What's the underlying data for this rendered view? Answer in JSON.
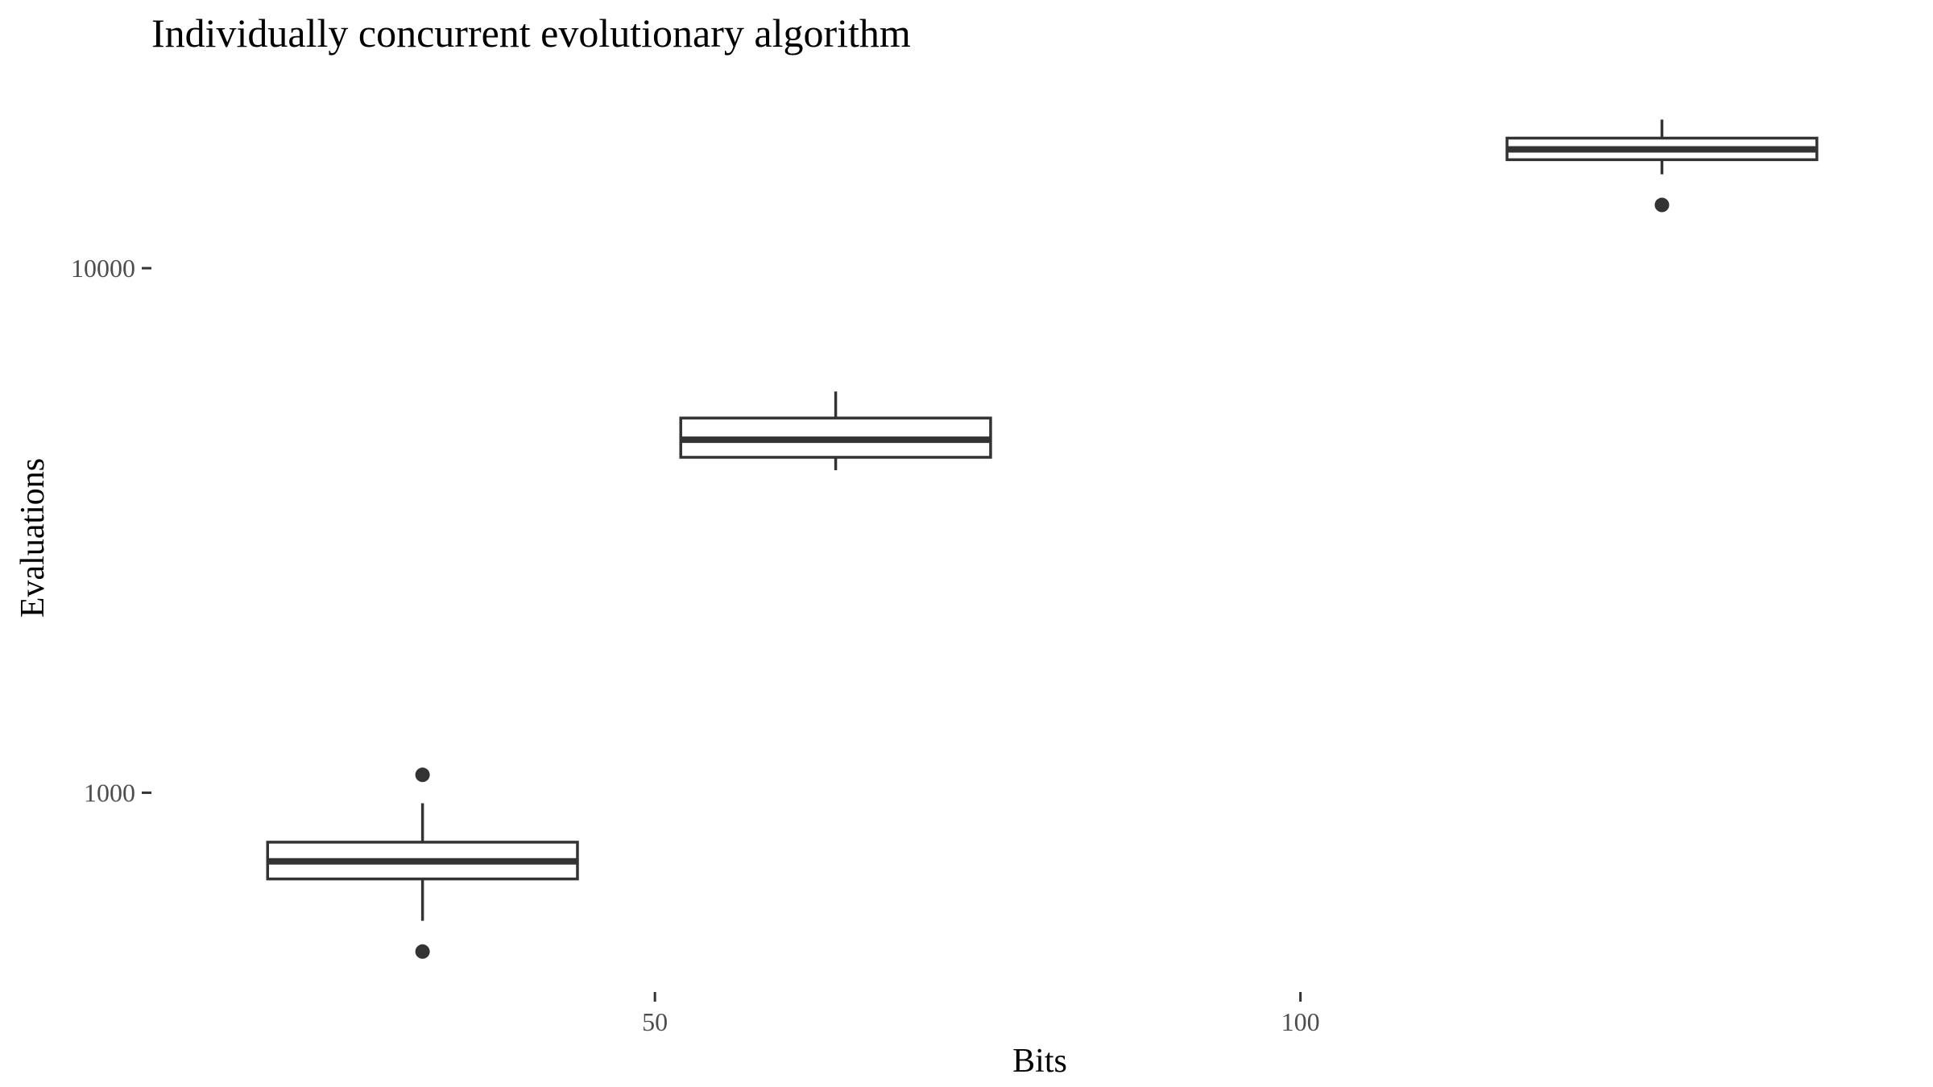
{
  "chart_data": {
    "type": "boxplot",
    "title": "Individually concurrent evolutionary algorithm",
    "xlabel": "Bits",
    "ylabel": "Evaluations",
    "x_scale": "linear",
    "y_scale": "log10",
    "xlim": [
      11,
      146
    ],
    "ylim": [
      420,
      22000
    ],
    "x_ticks": [
      50,
      100
    ],
    "y_ticks": [
      1000,
      10000
    ],
    "x_tick_labels": [
      "50",
      "100"
    ],
    "y_tick_labels": [
      "1000",
      "10000"
    ],
    "grid": false,
    "legend": "none",
    "colors": {
      "line": "#333333",
      "fill": "#ffffff",
      "tick_label": "#4d4d4d"
    },
    "boxes": [
      {
        "x": 32,
        "box_width": 24,
        "whisker_low": 570,
        "q1": 685,
        "median": 740,
        "q3": 805,
        "whisker_high": 955,
        "outliers": [
          498,
          1082
        ]
      },
      {
        "x": 64,
        "box_width": 24,
        "whisker_low": 4120,
        "q1": 4360,
        "median": 4710,
        "q3": 5180,
        "whisker_high": 5820,
        "outliers": []
      },
      {
        "x": 128,
        "box_width": 24,
        "whisker_low": 15100,
        "q1": 16100,
        "median": 16850,
        "q3": 17700,
        "whisker_high": 19200,
        "outliers": [
          13200
        ]
      }
    ]
  }
}
